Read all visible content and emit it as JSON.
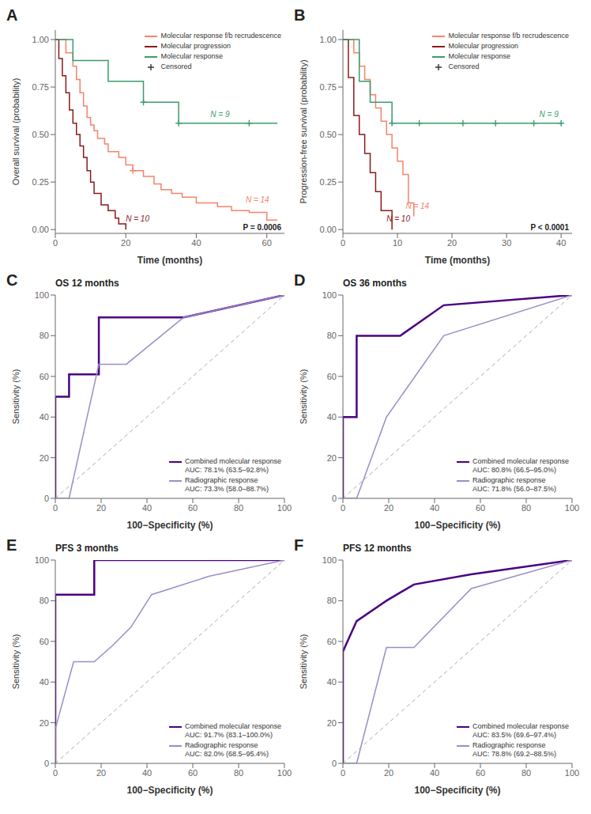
{
  "chart_data": [
    {
      "type": "step",
      "panel_label": "A",
      "x_label": "Time (months)",
      "y_label": "Overall survival (probability)",
      "xlim": [
        0,
        65
      ],
      "ylim": [
        -0.02,
        1.05
      ],
      "xticks": [
        0,
        20,
        40,
        60
      ],
      "yticks": [
        {
          "value": 0,
          "label": "0.00"
        },
        0.25,
        {
          "value": 0.5,
          "label": "0.50"
        },
        0.75,
        {
          "value": 1,
          "label": "1.00"
        }
      ],
      "legend": "upper right",
      "series": [
        {
          "name": "Molecular response f/b recrudescence",
          "color": "#F4836A",
          "x": [
            0,
            2,
            3,
            5,
            6,
            7,
            8,
            9,
            10,
            11,
            12,
            14,
            15,
            18,
            20,
            22,
            25,
            28,
            30,
            33,
            36,
            40,
            46,
            50,
            55,
            60,
            63
          ],
          "values": [
            1.0,
            1.0,
            0.93,
            0.86,
            0.79,
            0.72,
            0.65,
            0.59,
            0.55,
            0.52,
            0.48,
            0.45,
            0.41,
            0.38,
            0.34,
            0.31,
            0.28,
            0.24,
            0.21,
            0.19,
            0.17,
            0.14,
            0.12,
            0.1,
            0.09,
            0.05,
            0.05
          ]
        },
        {
          "name": "Molecular progression",
          "color": "#8B1A1A",
          "x": [
            0,
            1,
            2,
            3,
            4,
            5,
            6,
            7,
            8,
            9,
            10,
            11,
            12,
            13,
            14,
            15,
            16,
            17,
            18,
            19,
            20
          ],
          "values": [
            1.0,
            0.9,
            0.81,
            0.72,
            0.63,
            0.56,
            0.5,
            0.44,
            0.38,
            0.31,
            0.25,
            0.19,
            0.19,
            0.13,
            0.13,
            0.1,
            0.1,
            0.06,
            0.03,
            0.03,
            0.0
          ]
        },
        {
          "name": "Molecular response",
          "color": "#3A9C6E",
          "x": [
            0,
            1,
            5,
            10,
            15,
            20,
            25,
            30,
            35,
            40,
            45,
            50,
            55,
            63
          ],
          "values": [
            1.0,
            1.0,
            0.89,
            0.89,
            0.78,
            0.78,
            0.67,
            0.67,
            0.56,
            0.56,
            0.56,
            0.56,
            0.56,
            0.56
          ]
        },
        {
          "name": "Censored",
          "type": "scatter",
          "marker": "plus",
          "color": "#333333",
          "x": [
            22,
            25,
            35,
            55
          ],
          "values": [
            0.31,
            0.67,
            0.56,
            0.56
          ],
          "colors": [
            "#F4836A",
            "#3A9C6E",
            "#3A9C6E",
            "#3A9C6E"
          ]
        }
      ],
      "annotations": [
        {
          "text": "N = 10",
          "x": 20,
          "y": 0.035,
          "color": "#8B1A1A"
        },
        {
          "text": "N = 14",
          "x": 54,
          "y": 0.135,
          "color": "#F4836A"
        },
        {
          "text": "N = 9",
          "x": 44,
          "y": 0.585,
          "color": "#3A9C6E"
        },
        {
          "text": "P = 0.0006"
        }
      ]
    },
    {
      "type": "step",
      "panel_label": "B",
      "x_label": "Time (months)",
      "y_label": "Progression-free survival (probability)",
      "xlim": [
        0,
        42
      ],
      "ylim": [
        -0.02,
        1.05
      ],
      "xticks": [
        0,
        10,
        20,
        30,
        40
      ],
      "yticks": [
        {
          "value": 0,
          "label": "0.00"
        },
        0.25,
        {
          "value": 0.5,
          "label": "0.50"
        },
        0.75,
        {
          "value": 1,
          "label": "1.00"
        }
      ],
      "legend": "upper right",
      "series": [
        {
          "name": "Molecular response f/b recrudescence",
          "color": "#F4836A",
          "x": [
            0,
            1,
            2,
            3,
            4,
            5,
            6,
            7,
            8,
            9,
            10,
            11,
            12,
            13
          ],
          "values": [
            1.0,
            1.0,
            0.93,
            0.86,
            0.79,
            0.71,
            0.64,
            0.57,
            0.5,
            0.43,
            0.36,
            0.29,
            0.14,
            0.07
          ]
        },
        {
          "name": "Molecular progression",
          "color": "#8B1A1A",
          "x": [
            0,
            1,
            2,
            3,
            4,
            5,
            6,
            7,
            8,
            9
          ],
          "values": [
            1.0,
            0.8,
            0.6,
            0.5,
            0.4,
            0.3,
            0.2,
            0.1,
            0.1,
            0.0
          ]
        },
        {
          "name": "Molecular response",
          "color": "#3A9C6E",
          "x": [
            0,
            2,
            3,
            5,
            7,
            9,
            11,
            14,
            18,
            22,
            28,
            35,
            40
          ],
          "values": [
            1.0,
            1.0,
            0.78,
            0.67,
            0.67,
            0.56,
            0.56,
            0.56,
            0.56,
            0.56,
            0.56,
            0.56,
            0.56
          ]
        },
        {
          "name": "Censored",
          "type": "scatter",
          "marker": "plus",
          "color": "#333333",
          "x": [
            9,
            14,
            22,
            28,
            35,
            40
          ],
          "values": [
            0.56,
            0.56,
            0.56,
            0.56,
            0.56,
            0.56
          ],
          "colors": [
            "#3A9C6E",
            "#3A9C6E",
            "#3A9C6E",
            "#3A9C6E",
            "#3A9C6E",
            "#3A9C6E"
          ]
        }
      ],
      "annotations": [
        {
          "text": "N = 10",
          "x": 8,
          "y": 0.035,
          "color": "#8B1A1A"
        },
        {
          "text": "N = 14",
          "x": 11.5,
          "y": 0.1,
          "color": "#F4836A"
        },
        {
          "text": "N = 9",
          "x": 36,
          "y": 0.585,
          "color": "#3A9C6E"
        },
        {
          "text": "P < 0.0001"
        }
      ]
    },
    {
      "type": "line",
      "panel_label": "C",
      "title": "OS 12 months",
      "x_label": "100−Specificity (%)",
      "y_label": "Sensitivity (%)",
      "xlim": [
        0,
        100
      ],
      "ylim": [
        0,
        100
      ],
      "xticks": [
        0,
        20,
        40,
        60,
        80,
        100
      ],
      "yticks": [
        0,
        20,
        40,
        60,
        80,
        100
      ],
      "legend": "lower right",
      "series": [
        {
          "name": "Combined molecular response\nAUC: 78.1% (63.5–92.8%)",
          "color": "#4B0082",
          "x": [
            0,
            0,
            6,
            6,
            19,
            19,
            56,
            100
          ],
          "values": [
            0,
            50,
            50,
            61,
            61,
            89,
            89,
            100
          ]
        },
        {
          "name": "Radiographic response\nAUC: 73.3% (58.0–88.7%)",
          "color": "#9B8DC8",
          "x": [
            0,
            6,
            19,
            19,
            31,
            56,
            100
          ],
          "values": [
            0,
            0,
            66,
            66,
            66,
            89,
            100
          ]
        },
        {
          "color": "#AAAAAA",
          "line_style": "dashed",
          "x": [
            0,
            100
          ],
          "values": [
            0,
            100
          ]
        }
      ]
    },
    {
      "type": "line",
      "panel_label": "D",
      "title": "OS 36 months",
      "x_label": "100−Specificity (%)",
      "y_label": "Sensitivity (%)",
      "xlim": [
        0,
        100
      ],
      "ylim": [
        0,
        100
      ],
      "xticks": [
        0,
        20,
        40,
        60,
        80,
        100
      ],
      "yticks": [
        0,
        20,
        40,
        60,
        80,
        100
      ],
      "legend": "lower right",
      "series": [
        {
          "name": "Combined molecular response\nAUC: 80.8% (66.5–95.0%)",
          "color": "#4B0082",
          "x": [
            0,
            0,
            6,
            6,
            25,
            44,
            100
          ],
          "values": [
            0,
            40,
            40,
            80,
            80,
            95,
            100
          ]
        },
        {
          "name": "Radiographic response\nAUC: 71.8% (56.0–87.5%)",
          "color": "#9B8DC8",
          "x": [
            0,
            6,
            19,
            44,
            100
          ],
          "values": [
            0,
            0,
            40,
            80,
            100
          ]
        },
        {
          "color": "#AAAAAA",
          "line_style": "dashed",
          "x": [
            0,
            100
          ],
          "values": [
            0,
            100
          ]
        }
      ]
    },
    {
      "type": "line",
      "panel_label": "E",
      "title": "PFS 3 months",
      "x_label": "100−Specificity (%)",
      "y_label": "Sensitivity (%)",
      "xlim": [
        0,
        100
      ],
      "ylim": [
        0,
        100
      ],
      "xticks": [
        0,
        20,
        40,
        60,
        80,
        100
      ],
      "yticks": [
        0,
        20,
        40,
        60,
        80,
        100
      ],
      "legend": "lower right",
      "series": [
        {
          "name": "Combined molecular response\nAUC: 91.7% (83.1–100.0%)",
          "color": "#4B0082",
          "x": [
            0,
            0,
            17,
            17,
            42,
            100
          ],
          "values": [
            0,
            83,
            83,
            100,
            100,
            100
          ]
        },
        {
          "name": "Radiographic response\nAUC: 82.0% (68.5–95.4%)",
          "color": "#9B8DC8",
          "x": [
            0,
            0,
            8,
            17,
            25,
            33,
            42,
            67,
            100
          ],
          "values": [
            0,
            17,
            50,
            50,
            58,
            67,
            83,
            92,
            100
          ]
        },
        {
          "color": "#AAAAAA",
          "line_style": "dashed",
          "x": [
            0,
            100
          ],
          "values": [
            0,
            100
          ]
        }
      ]
    },
    {
      "type": "line",
      "panel_label": "F",
      "title": "PFS 12 months",
      "x_label": "100−Specificity (%)",
      "y_label": "Sensitivity (%)",
      "xlim": [
        0,
        100
      ],
      "ylim": [
        0,
        100
      ],
      "xticks": [
        0,
        20,
        40,
        60,
        80,
        100
      ],
      "yticks": [
        0,
        20,
        40,
        60,
        80,
        100
      ],
      "legend": "lower right",
      "series": [
        {
          "name": "Combined molecular response\nAUC: 83.5% (69.6–97.4%)",
          "color": "#4B0082",
          "x": [
            0,
            0,
            6,
            19,
            31,
            56,
            100
          ],
          "values": [
            0,
            55,
            70,
            80,
            88,
            93,
            100
          ]
        },
        {
          "name": "Radiographic response\nAUC: 78.8% (69.2–88.5%)",
          "color": "#9B8DC8",
          "x": [
            0,
            6,
            19,
            31,
            56,
            100
          ],
          "values": [
            0,
            0,
            57,
            57,
            86,
            100
          ]
        },
        {
          "color": "#AAAAAA",
          "line_style": "dashed",
          "x": [
            0,
            100
          ],
          "values": [
            0,
            100
          ]
        }
      ]
    }
  ]
}
